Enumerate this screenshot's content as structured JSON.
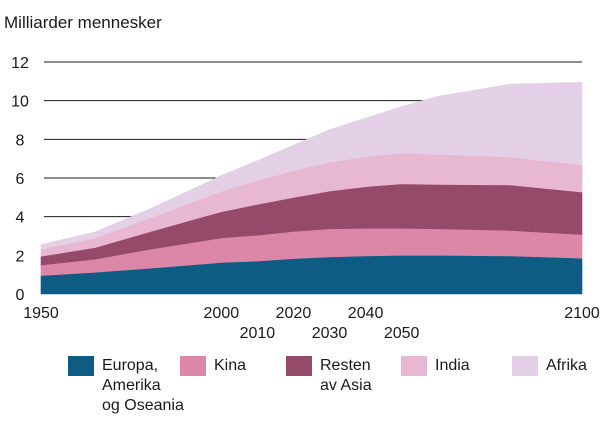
{
  "chart_data": {
    "type": "area",
    "stacked": true,
    "title": "Milliarder mennesker",
    "xlabel": "",
    "ylabel": "Milliarder mennesker",
    "ylim": [
      0,
      12
    ],
    "xlim": [
      1950,
      2100
    ],
    "y_ticks": [
      0,
      2,
      4,
      6,
      8,
      10,
      12
    ],
    "x_tick_labels": [
      {
        "year": 1950,
        "label": "1950",
        "row": 1
      },
      {
        "year": 2000,
        "label": "2000",
        "row": 1
      },
      {
        "year": 2010,
        "label": "2010",
        "row": 2
      },
      {
        "year": 2020,
        "label": "2020",
        "row": 1
      },
      {
        "year": 2030,
        "label": "2030",
        "row": 2
      },
      {
        "year": 2040,
        "label": "2040",
        "row": 1
      },
      {
        "year": 2050,
        "label": "2050",
        "row": 2
      },
      {
        "year": 2100,
        "label": "2100",
        "row": 1
      }
    ],
    "x": [
      1950,
      1965,
      1980,
      1995,
      2000,
      2010,
      2020,
      2030,
      2040,
      2050,
      2060,
      2080,
      2100
    ],
    "series": [
      {
        "name": "Europa, Amerika og Oseania",
        "color": "#0e5c84",
        "values": [
          0.95,
          1.12,
          1.33,
          1.55,
          1.63,
          1.7,
          1.83,
          1.92,
          1.97,
          2.0,
          2.0,
          1.97,
          1.85
        ]
      },
      {
        "name": "Kina",
        "color": "#dc86a8",
        "values": [
          0.55,
          0.68,
          0.98,
          1.2,
          1.27,
          1.34,
          1.41,
          1.45,
          1.43,
          1.4,
          1.37,
          1.32,
          1.22
        ]
      },
      {
        "name": "Resten av Asia",
        "color": "#964a6a",
        "values": [
          0.45,
          0.6,
          0.9,
          1.25,
          1.35,
          1.6,
          1.75,
          1.95,
          2.15,
          2.3,
          2.3,
          2.35,
          2.2
        ]
      },
      {
        "name": "India",
        "color": "#e8b8d3",
        "values": [
          0.37,
          0.5,
          0.7,
          0.96,
          1.06,
          1.23,
          1.38,
          1.5,
          1.55,
          1.6,
          1.55,
          1.45,
          1.4
        ]
      },
      {
        "name": "Afrika",
        "color": "#e3d0e6",
        "values": [
          0.23,
          0.31,
          0.48,
          0.72,
          0.82,
          1.03,
          1.33,
          1.68,
          2.0,
          2.4,
          3.0,
          3.76,
          4.28
        ]
      }
    ],
    "legend": [
      {
        "label": "Europa,\nAmerika\nog Oseania",
        "color": "#0e5c84"
      },
      {
        "label": "Kina",
        "color": "#dc86a8"
      },
      {
        "label": "Resten\nav Asia",
        "color": "#964a6a"
      },
      {
        "label": "India",
        "color": "#e8b8d3"
      },
      {
        "label": "Afrika",
        "color": "#e3d0e6"
      }
    ],
    "grid": true,
    "legend_position": "bottom"
  }
}
